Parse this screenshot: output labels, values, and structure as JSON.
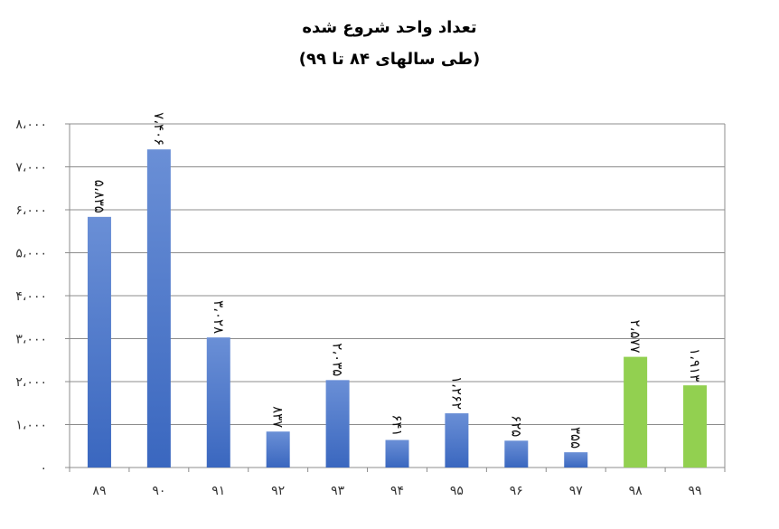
{
  "chart_data": {
    "type": "bar",
    "title": "تعداد واحد شروع شده",
    "subtitle": "(طی سالهای ۸۴ تا ۹۹)",
    "categories": [
      "۸۹",
      "۹۰",
      "۹۱",
      "۹۲",
      "۹۳",
      "۹۴",
      "۹۵",
      "۹۶",
      "۹۷",
      "۹۸",
      "۹۹"
    ],
    "values": [
      5835,
      7406,
      3028,
      837,
      2035,
      641,
      1262,
      625,
      355,
      2577,
      1913
    ],
    "value_labels": [
      "۵،۸۳۵",
      "۷،۴۰۶",
      "۳،۰۲۸",
      "۸۳۷",
      "۲،۰۳۵",
      "۶۴۱",
      "۱،۲۶۲",
      "۶۲۵",
      "۳۵۵",
      "۲،۵۷۷",
      "۱،۹۱۳"
    ],
    "bar_colors": [
      "#4472c4",
      "#4472c4",
      "#4472c4",
      "#4472c4",
      "#4472c4",
      "#4472c4",
      "#4472c4",
      "#4472c4",
      "#4472c4",
      "#92d050",
      "#92d050"
    ],
    "y_ticks": [
      0,
      1000,
      2000,
      3000,
      4000,
      5000,
      6000,
      7000,
      8000
    ],
    "y_tick_labels": [
      "۰",
      "۱،۰۰۰",
      "۲،۰۰۰",
      "۳،۰۰۰",
      "۴،۰۰۰",
      "۵،۰۰۰",
      "۶،۰۰۰",
      "۷،۰۰۰",
      "۸،۰۰۰"
    ],
    "ylim": [
      0,
      8000
    ],
    "grid": true,
    "legend": "none"
  }
}
